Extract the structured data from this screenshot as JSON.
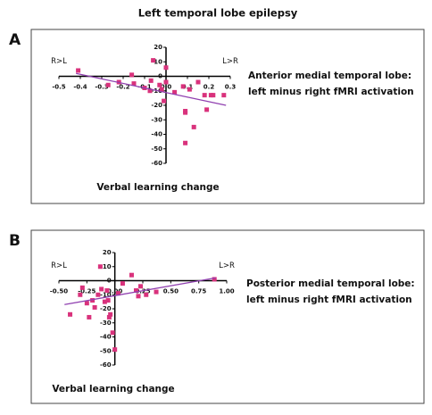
{
  "title": "Left temporal lobe epilepsy",
  "chart_data": [
    {
      "type": "scatter",
      "panel_label": "A",
      "xlabel": "Verbal learning change",
      "left_label": "R>L",
      "right_label": "L>R",
      "annotation": [
        "Anterior medial temporal lobe:",
        "left minus right fMRI activation"
      ],
      "x": [
        -0.41,
        -0.27,
        -0.22,
        -0.16,
        -0.15,
        -0.1,
        -0.075,
        -0.07,
        -0.06,
        -0.03,
        -0.02,
        -0.01,
        0.0,
        0.0,
        0.04,
        0.08,
        0.09,
        0.09,
        0.09,
        0.11,
        0.13,
        0.15,
        0.18,
        0.19,
        0.21,
        0.22,
        0.27
      ],
      "values": [
        4,
        -6,
        -4,
        1,
        -5,
        -8,
        -10,
        -3,
        11,
        -6,
        -9,
        -17,
        6,
        -4,
        -11,
        -7,
        -25,
        -24,
        -46,
        -9,
        -35,
        -4,
        -13,
        -23,
        -13,
        -13,
        -13
      ],
      "color": "#d9327c",
      "trend": {
        "x": [
          -0.42,
          0.28
        ],
        "values": [
          2,
          -20
        ],
        "color": "#9040b0"
      },
      "xlim": [
        -0.5,
        0.3
      ],
      "xticks": [
        -0.5,
        -0.4,
        -0.3,
        -0.2,
        -0.1,
        {
          "value": 0,
          "label": "0.0"
        },
        0.1,
        0.2,
        0.3
      ],
      "ylim": [
        -60,
        20
      ],
      "yticks": [
        20,
        10,
        0,
        -10,
        -20,
        -30,
        -40,
        -50,
        -60
      ]
    },
    {
      "type": "scatter",
      "panel_label": "B",
      "xlabel": "Verbal learning change",
      "left_label": "R>L",
      "right_label": "L>R",
      "annotation": [
        "Posterior medial temporal lobe:",
        "left minus right fMRI activation"
      ],
      "x": [
        -0.4,
        -0.31,
        -0.29,
        -0.25,
        -0.23,
        -0.2,
        -0.18,
        -0.15,
        -0.12,
        -0.13,
        -0.09,
        -0.07,
        -0.06,
        -0.05,
        -0.02,
        0.0,
        -0.04,
        0.03,
        0.07,
        0.15,
        0.19,
        0.21,
        0.23,
        0.28,
        0.37,
        0.89
      ],
      "values": [
        -24,
        -10,
        -5,
        -16,
        -26,
        -14,
        -19,
        -10,
        -6,
        10,
        -15,
        -7,
        -14,
        -26,
        -37,
        -49,
        -24,
        -9,
        -2,
        4,
        -7,
        -11,
        -4,
        -10,
        -8,
        1
      ],
      "color": "#d9327c",
      "trend": {
        "x": [
          -0.45,
          0.9
        ],
        "values": [
          -17,
          2
        ],
        "color": "#9040b0"
      },
      "xlim": [
        -0.5,
        1.0
      ],
      "xticks": [
        {
          "value": -0.5,
          "label": "-0.50"
        },
        {
          "value": -0.25,
          "label": "-0.25"
        },
        {
          "value": 0,
          "label": "0.00"
        },
        {
          "value": 0.25,
          "label": "0.25"
        },
        {
          "value": 0.5,
          "label": "0.50"
        },
        {
          "value": 0.75,
          "label": "0.75"
        },
        {
          "value": 1,
          "label": "1.00"
        }
      ],
      "ylim": [
        -60,
        20
      ],
      "yticks": [
        20,
        10,
        0,
        -10,
        -20,
        -30,
        -40,
        -50,
        -60
      ]
    }
  ]
}
